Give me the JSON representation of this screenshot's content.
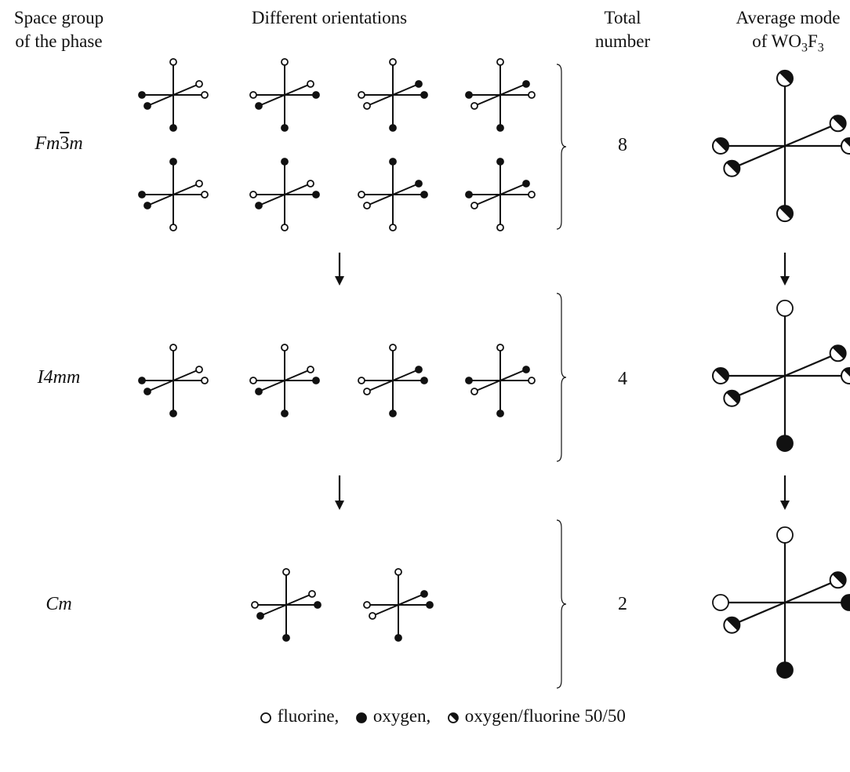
{
  "headers": {
    "space_group_line1": "Space group",
    "space_group_line2": "of the phase",
    "orientations": "Different orientations",
    "total_line1": "Total",
    "total_line2": "number",
    "average_line1": "Average mode",
    "average_line2_prefix": "of WO",
    "average_sub1": "3",
    "average_mid": "F",
    "average_sub2": "3"
  },
  "rows": [
    {
      "space_group_main": "Fm",
      "space_group_bar": "3",
      "space_group_end": "m",
      "total": "8",
      "orientations": [
        {
          "top": "F",
          "bottom": "O",
          "left": "O",
          "right": "F",
          "front": "O",
          "back": "F"
        },
        {
          "top": "F",
          "bottom": "O",
          "left": "F",
          "right": "O",
          "front": "O",
          "back": "F"
        },
        {
          "top": "F",
          "bottom": "O",
          "left": "F",
          "right": "O",
          "front": "F",
          "back": "O"
        },
        {
          "top": "F",
          "bottom": "O",
          "left": "O",
          "right": "F",
          "front": "F",
          "back": "O"
        },
        {
          "top": "O",
          "bottom": "F",
          "left": "O",
          "right": "F",
          "front": "O",
          "back": "F"
        },
        {
          "top": "O",
          "bottom": "F",
          "left": "F",
          "right": "O",
          "front": "O",
          "back": "F"
        },
        {
          "top": "O",
          "bottom": "F",
          "left": "F",
          "right": "O",
          "front": "F",
          "back": "O"
        },
        {
          "top": "O",
          "bottom": "F",
          "left": "O",
          "right": "F",
          "front": "F",
          "back": "O"
        }
      ],
      "average": {
        "top": "H",
        "bottom": "H",
        "left": "H",
        "right": "H",
        "front": "H",
        "back": "H"
      }
    },
    {
      "space_group_main": "I4mm",
      "total": "4",
      "orientations": [
        {
          "top": "F",
          "bottom": "O",
          "left": "O",
          "right": "F",
          "front": "O",
          "back": "F"
        },
        {
          "top": "F",
          "bottom": "O",
          "left": "F",
          "right": "O",
          "front": "O",
          "back": "F"
        },
        {
          "top": "F",
          "bottom": "O",
          "left": "F",
          "right": "O",
          "front": "F",
          "back": "O"
        },
        {
          "top": "F",
          "bottom": "O",
          "left": "O",
          "right": "F",
          "front": "F",
          "back": "O"
        }
      ],
      "average": {
        "top": "F",
        "bottom": "O",
        "left": "H",
        "right": "H",
        "front": "H",
        "back": "H"
      }
    },
    {
      "space_group_main": "Cm",
      "total": "2",
      "orientations": [
        {
          "top": "F",
          "bottom": "O",
          "left": "F",
          "right": "O",
          "front": "O",
          "back": "F"
        },
        {
          "top": "F",
          "bottom": "O",
          "left": "F",
          "right": "O",
          "front": "F",
          "back": "O"
        }
      ],
      "average": {
        "top": "F",
        "bottom": "O",
        "left": "F",
        "right": "O",
        "front": "H",
        "back": "H"
      }
    }
  ],
  "legend": {
    "fluorine": "fluorine,",
    "oxygen": "oxygen,",
    "mixed": "oxygen/fluorine 50/50"
  },
  "atom_types": {
    "F": "fluorine",
    "O": "oxygen",
    "H": "oxygen/fluorine 50/50"
  },
  "colors": {
    "line": "#111111",
    "fill": "#111111",
    "background": "#ffffff"
  }
}
